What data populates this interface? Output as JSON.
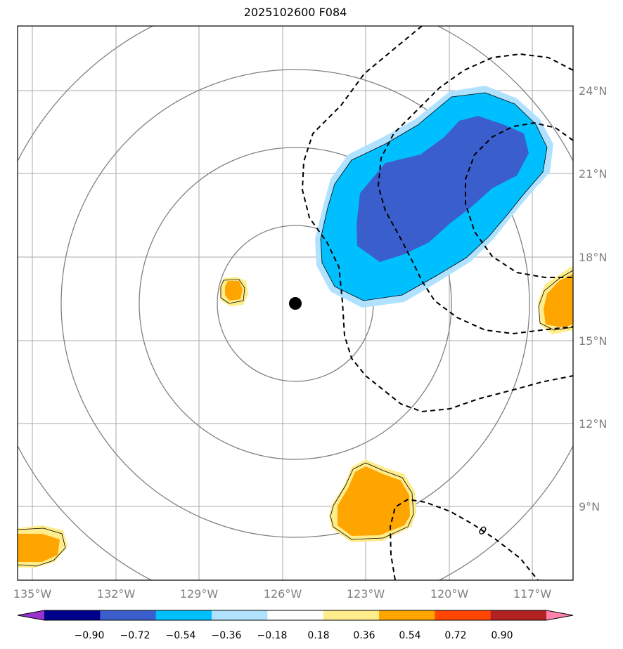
{
  "title": "2025102600 F084",
  "axes": {
    "lon_labels": [
      "135°W",
      "132°W",
      "129°W",
      "126°W",
      "123°W",
      "120°W",
      "117°W"
    ],
    "lat_labels": [
      "24°N",
      "21°N",
      "18°N",
      "15°N",
      "12°N",
      "9°N"
    ]
  },
  "contour_label": "0",
  "storm_center": {
    "lon": -125.6,
    "lat": 16.4
  },
  "colorbar": {
    "ticks": [
      "−0.90",
      "−0.72",
      "−0.54",
      "−0.36",
      "−0.18",
      "0.18",
      "0.36",
      "0.54",
      "0.72",
      "0.90"
    ],
    "colors": [
      "#9932CC",
      "#00008B",
      "#3A5FCD",
      "#00BFFF",
      "#B0E2FF",
      "#FFFFFF",
      "#FFEC8B",
      "#FFA500",
      "#FF4500",
      "#B22222",
      "#FF82AB"
    ]
  },
  "colors": {
    "fill_dark_blue": "#3A5FCD",
    "fill_blue": "#00BFFF",
    "fill_light_blue": "#B0E2FF",
    "fill_light_yellow": "#FFEC8B",
    "fill_orange": "#FFA500",
    "grid": "#AAAAAA",
    "rings": "#808080"
  }
}
